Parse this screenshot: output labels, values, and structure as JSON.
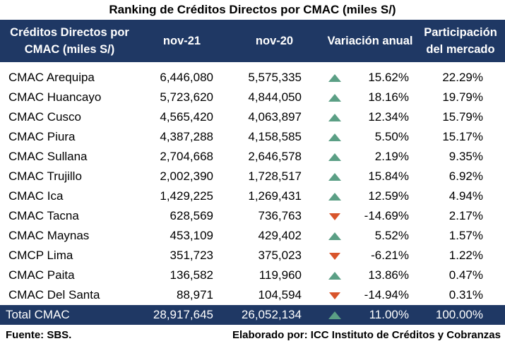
{
  "title": "Ranking de Créditos Directos por CMAC (miles S/)",
  "colors": {
    "header_bg": "#1f3864",
    "up": "#5b9f85",
    "down": "#d8542b"
  },
  "chart_data": {
    "type": "table",
    "columns": [
      "Créditos Directos por CMAC (miles S/)",
      "nov-21",
      "nov-20",
      "Variación anual",
      "Participación del mercado"
    ],
    "rows": [
      {
        "name": "CMAC Arequipa",
        "nov21": "6,446,080",
        "nov20": "5,575,335",
        "dir": "up",
        "var": "15.62%",
        "part": "22.29%"
      },
      {
        "name": "CMAC Huancayo",
        "nov21": "5,723,620",
        "nov20": "4,844,050",
        "dir": "up",
        "var": "18.16%",
        "part": "19.79%"
      },
      {
        "name": "CMAC Cusco",
        "nov21": "4,565,420",
        "nov20": "4,063,897",
        "dir": "up",
        "var": "12.34%",
        "part": "15.79%"
      },
      {
        "name": "CMAC Piura",
        "nov21": "4,387,288",
        "nov20": "4,158,585",
        "dir": "up",
        "var": "5.50%",
        "part": "15.17%"
      },
      {
        "name": "CMAC Sullana",
        "nov21": "2,704,668",
        "nov20": "2,646,578",
        "dir": "up",
        "var": "2.19%",
        "part": "9.35%"
      },
      {
        "name": "CMAC Trujillo",
        "nov21": "2,002,390",
        "nov20": "1,728,517",
        "dir": "up",
        "var": "15.84%",
        "part": "6.92%"
      },
      {
        "name": "CMAC Ica",
        "nov21": "1,429,225",
        "nov20": "1,269,431",
        "dir": "up",
        "var": "12.59%",
        "part": "4.94%"
      },
      {
        "name": "CMAC Tacna",
        "nov21": "628,569",
        "nov20": "736,763",
        "dir": "down",
        "var": "-14.69%",
        "part": "2.17%"
      },
      {
        "name": "CMAC Maynas",
        "nov21": "453,109",
        "nov20": "429,402",
        "dir": "up",
        "var": "5.52%",
        "part": "1.57%"
      },
      {
        "name": "CMCP Lima",
        "nov21": "351,723",
        "nov20": "375,023",
        "dir": "down",
        "var": "-6.21%",
        "part": "1.22%"
      },
      {
        "name": "CMAC Paita",
        "nov21": "136,582",
        "nov20": "119,960",
        "dir": "up",
        "var": "13.86%",
        "part": "0.47%"
      },
      {
        "name": "CMAC Del Santa",
        "nov21": "88,971",
        "nov20": "104,594",
        "dir": "down",
        "var": "-14.94%",
        "part": "0.31%"
      }
    ],
    "total": {
      "name": "Total CMAC",
      "nov21": "28,917,645",
      "nov20": "26,052,134",
      "dir": "up",
      "var": "11.00%",
      "part": "100.00%"
    }
  },
  "footer": {
    "source": "Fuente: SBS.",
    "credit": "Elaborado por: ICC Instituto de Créditos y Cobranzas"
  }
}
